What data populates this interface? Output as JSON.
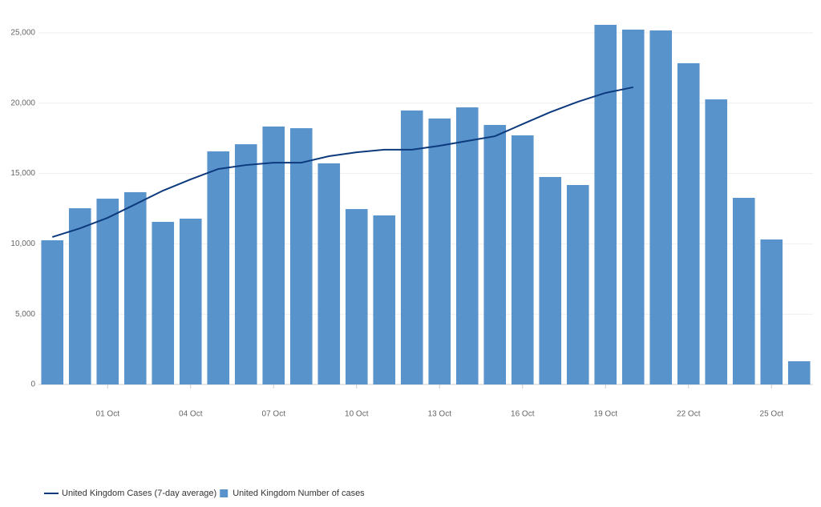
{
  "chart_data": {
    "type": "bar",
    "categories": [
      null,
      null,
      "01 Oct",
      null,
      null,
      "04 Oct",
      null,
      null,
      "07 Oct",
      null,
      null,
      "10 Oct",
      null,
      null,
      "13 Oct",
      null,
      null,
      "16 Oct",
      null,
      null,
      "19 Oct",
      null,
      null,
      "22 Oct",
      null,
      null,
      "25 Oct",
      null
    ],
    "series": [
      {
        "name": "United Kingdom Cases (7-day average)",
        "type": "line",
        "color": "#0d3a7d",
        "values": [
          10480,
          11100,
          11850,
          12810,
          13780,
          14580,
          15320,
          15600,
          15770,
          15770,
          16230,
          16510,
          16690,
          16690,
          16970,
          17310,
          17650,
          18510,
          19360,
          20100,
          20730,
          21130,
          null,
          null,
          null,
          null,
          null,
          null
        ]
      },
      {
        "name": "United Kingdom Number of cases",
        "type": "bar",
        "color": "#5893cb",
        "values": [
          10250,
          12530,
          13210,
          13670,
          11560,
          11790,
          16570,
          17080,
          18340,
          18220,
          15720,
          12470,
          12020,
          19480,
          18910,
          19700,
          18450,
          17710,
          14750,
          14180,
          25570,
          25230,
          25170,
          22840,
          20270,
          13270,
          10310,
          1650
        ]
      }
    ],
    "ylim": [
      0,
      25000
    ],
    "yticks": [
      0,
      {
        "value": 5000,
        "label": "5,000"
      },
      {
        "value": 10000,
        "label": "10,000"
      },
      {
        "value": 15000,
        "label": "15,000"
      },
      {
        "value": 20000,
        "label": "20,000"
      },
      {
        "value": 25000,
        "label": "25,000"
      }
    ],
    "grid": true,
    "legend": "bottom-left"
  }
}
